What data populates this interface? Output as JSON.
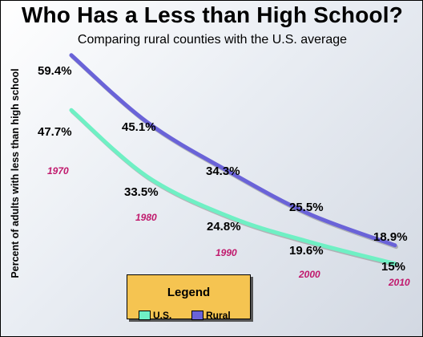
{
  "chart_data": {
    "type": "line",
    "title": "Who Has a Less than High School?",
    "subtitle": "Comparing rural counties with the U.S. average",
    "ylabel": "Percent of adults with less than high school",
    "x": [
      "1970",
      "1980",
      "1990",
      "2000",
      "2010"
    ],
    "series": [
      {
        "name": "Rural",
        "color": "#6a63d8",
        "values": [
          59.4,
          45.1,
          34.3,
          25.5,
          18.9
        ],
        "labels": [
          "59.4%",
          "45.1%",
          "34.3%",
          "25.5%",
          "18.9%"
        ]
      },
      {
        "name": "U.S.",
        "color": "#6ff0c4",
        "values": [
          47.7,
          33.5,
          24.8,
          19.6,
          15
        ],
        "labels": [
          "47.7%",
          "33.5%",
          "24.8%",
          "19.6%",
          "15%"
        ]
      }
    ],
    "ylim": [
      0,
      70
    ],
    "grid": false,
    "legend": {
      "title": "Legend",
      "position": "bottom-center"
    },
    "year_label_color": "#c0186c"
  }
}
